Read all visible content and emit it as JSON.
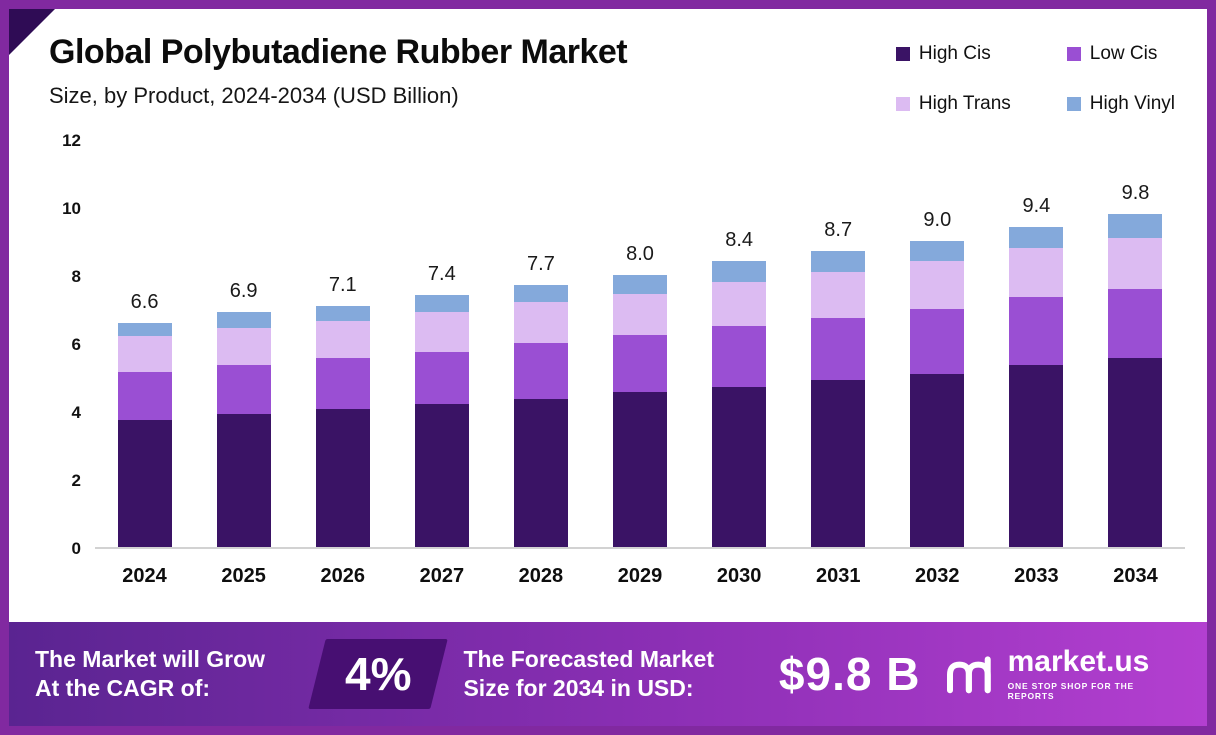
{
  "header": {
    "title": "Global Polybutadiene Rubber Market",
    "subtitle": "Size, by Product, 2024-2034 (USD Billion)"
  },
  "legend": [
    {
      "label": "High Cis",
      "color": "#3a1365"
    },
    {
      "label": "Low Cis",
      "color": "#9a4fd3"
    },
    {
      "label": "High Trans",
      "color": "#dcbbf2"
    },
    {
      "label": "High Vinyl",
      "color": "#84a9db"
    }
  ],
  "chart_data": {
    "type": "bar",
    "stacked": true,
    "title": "Global Polybutadiene Rubber Market Size, by Product, 2024-2034 (USD Billion)",
    "xlabel": "",
    "ylabel": "",
    "ylim": [
      0,
      12
    ],
    "yticks": [
      0,
      2,
      4,
      6,
      8,
      10,
      12
    ],
    "grid": false,
    "legend_position": "top-right",
    "categories": [
      "2024",
      "2025",
      "2026",
      "2027",
      "2028",
      "2029",
      "2030",
      "2031",
      "2032",
      "2033",
      "2034"
    ],
    "series": [
      {
        "name": "High Cis",
        "color": "#3a1365",
        "values": [
          3.75,
          3.9,
          4.05,
          4.2,
          4.35,
          4.55,
          4.7,
          4.9,
          5.1,
          5.35,
          5.55
        ]
      },
      {
        "name": "Low Cis",
        "color": "#9a4fd3",
        "values": [
          1.4,
          1.45,
          1.5,
          1.55,
          1.65,
          1.7,
          1.8,
          1.85,
          1.9,
          2.0,
          2.05
        ]
      },
      {
        "name": "High Trans",
        "color": "#dcbbf2",
        "values": [
          1.05,
          1.1,
          1.1,
          1.15,
          1.2,
          1.2,
          1.3,
          1.35,
          1.4,
          1.45,
          1.5
        ]
      },
      {
        "name": "High Vinyl",
        "color": "#84a9db",
        "values": [
          0.4,
          0.45,
          0.45,
          0.5,
          0.5,
          0.55,
          0.6,
          0.6,
          0.6,
          0.6,
          0.7
        ]
      }
    ],
    "totals": [
      6.6,
      6.9,
      7.1,
      7.4,
      7.7,
      8.0,
      8.4,
      8.7,
      9.0,
      9.4,
      9.8
    ],
    "total_labels": [
      "6.6",
      "6.9",
      "7.1",
      "7.4",
      "7.7",
      "8.0",
      "8.4",
      "8.7",
      "9.0",
      "9.4",
      "9.8"
    ]
  },
  "footer": {
    "cagr_label": "The Market will Grow At the CAGR of:",
    "cagr_value": "4%",
    "forecast_label": "The Forecasted Market Size for 2034 in USD:",
    "forecast_value": "$9.8 B",
    "brand": "market.us",
    "brand_tagline": "ONE STOP SHOP FOR THE REPORTS",
    "brand_icon": "marketus-logo"
  },
  "colors": {
    "frame_border": "#8129a0",
    "corner_accent": "#2f0c55",
    "footer_gradient_start": "#5a2491",
    "footer_gradient_end": "#b33fd0",
    "cagr_badge_bg": "#470f72"
  }
}
